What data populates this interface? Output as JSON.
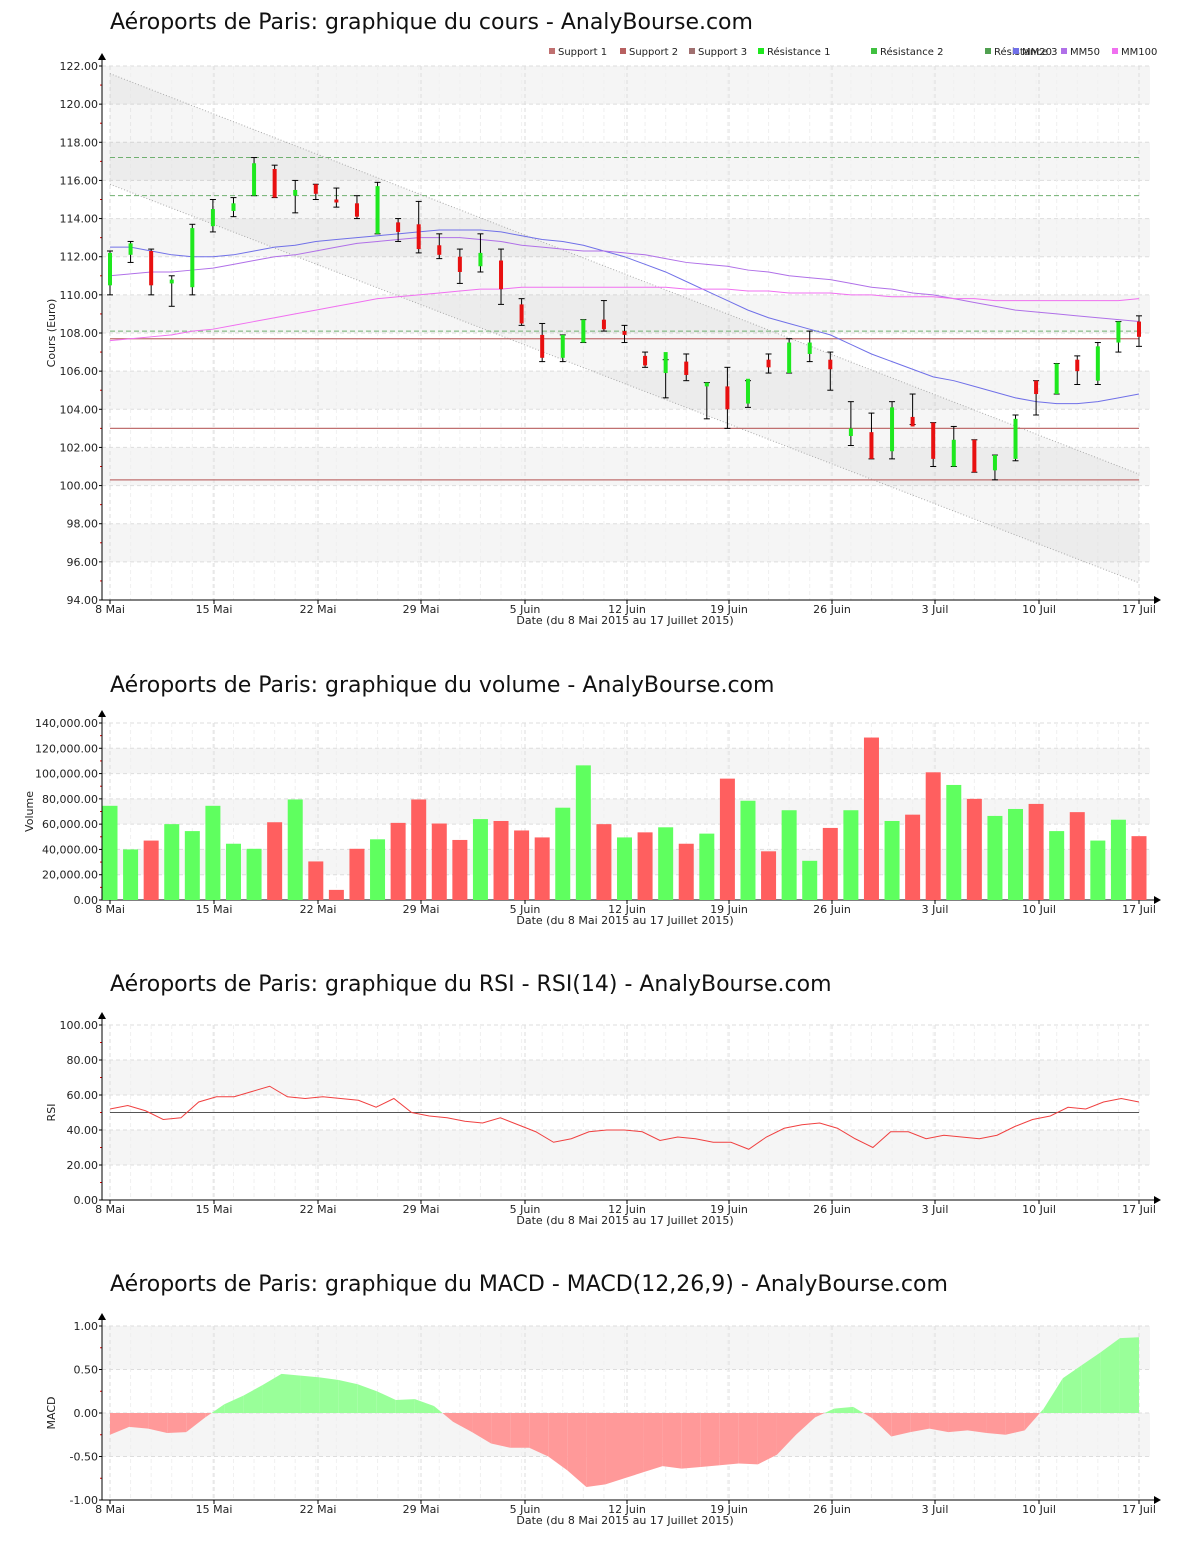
{
  "page": {
    "titles": {
      "price": "Aéroports de Paris: graphique du cours - AnalyBourse.com",
      "volume": "Aéroports de Paris: graphique du volume - AnalyBourse.com",
      "rsi": "Aéroports de Paris: graphique du RSI - RSI(14) - AnalyBourse.com",
      "macd": "Aéroports de Paris: graphique du MACD - MACD(12,26,9) - AnalyBourse.com"
    },
    "xlabel": "Date (du 8 Mai 2015 au 17 Juillet 2015)",
    "colors": {
      "up": "#1ee81e",
      "down": "#e81010",
      "vol_up": "#5fff5f",
      "vol_down": "#ff5f5f",
      "support": "#c07070",
      "resistance": "#70b070",
      "mm20": "#7070e8",
      "mm50": "#b070e8",
      "mm100": "#f070f0",
      "rsi_line": "#f04040",
      "macd_pos": "#99ff99",
      "macd_neg": "#ff9999"
    }
  },
  "chart_data": [
    {
      "type": "candlestick",
      "title": "Aéroports de Paris: graphique du cours - AnalyBourse.com",
      "xlabel": "Date (du 8 Mai 2015 au 17 Juillet 2015)",
      "ylabel": "Cours (Euro)",
      "ylim": [
        94,
        122
      ],
      "yticks": [
        "94.00",
        "96.00",
        "98.00",
        "100.00",
        "102.00",
        "104.00",
        "106.00",
        "108.00",
        "110.00",
        "112.00",
        "114.00",
        "116.00",
        "118.00",
        "120.00",
        "122.00"
      ],
      "xticks": [
        "8 Mai",
        "15 Mai",
        "22 Mai",
        "29 Mai",
        "5 Juin",
        "12 Juin",
        "19 Juin",
        "26 Juin",
        "3 Juil",
        "10 Juil",
        "17 Juil"
      ],
      "grid": true,
      "legend": [
        "Support 1",
        "Support 2",
        "Support 3",
        "Résistance 1",
        "Résistance 2",
        "Résistance 3",
        "MM20",
        "MM50",
        "MM100"
      ],
      "legend_position": "top-right",
      "levels": {
        "support": [
          100.3,
          103.0,
          107.7
        ],
        "resistance": [
          108.1,
          115.2,
          117.2
        ]
      },
      "channel": {
        "upper": [
          121.6,
          100.6
        ],
        "lower": [
          115.8,
          94.9
        ]
      },
      "candles": [
        {
          "o": 110.5,
          "h": 112.3,
          "l": 110.0,
          "c": 112.2
        },
        {
          "o": 112.1,
          "h": 112.8,
          "l": 111.7,
          "c": 112.7
        },
        {
          "o": 112.3,
          "h": 112.4,
          "l": 110.0,
          "c": 110.5
        },
        {
          "o": 110.6,
          "h": 111.0,
          "l": 109.4,
          "c": 110.8
        },
        {
          "o": 110.4,
          "h": 113.7,
          "l": 110.0,
          "c": 113.5
        },
        {
          "o": 113.6,
          "h": 115.0,
          "l": 113.3,
          "c": 114.5
        },
        {
          "o": 114.4,
          "h": 115.1,
          "l": 114.1,
          "c": 114.8
        },
        {
          "o": 115.2,
          "h": 117.2,
          "l": 115.2,
          "c": 116.9
        },
        {
          "o": 116.6,
          "h": 116.8,
          "l": 115.1,
          "c": 115.1
        },
        {
          "o": 115.2,
          "h": 116.0,
          "l": 114.3,
          "c": 115.5
        },
        {
          "o": 115.8,
          "h": 115.8,
          "l": 115.0,
          "c": 115.3
        },
        {
          "o": 115.0,
          "h": 115.6,
          "l": 114.6,
          "c": 114.9
        },
        {
          "o": 114.8,
          "h": 115.2,
          "l": 114.0,
          "c": 114.1
        },
        {
          "o": 113.2,
          "h": 115.9,
          "l": 113.2,
          "c": 115.7
        },
        {
          "o": 113.8,
          "h": 114.0,
          "l": 112.8,
          "c": 113.3
        },
        {
          "o": 113.7,
          "h": 114.9,
          "l": 112.2,
          "c": 112.4
        },
        {
          "o": 112.6,
          "h": 113.2,
          "l": 111.9,
          "c": 112.1
        },
        {
          "o": 112.0,
          "h": 112.4,
          "l": 110.6,
          "c": 111.2
        },
        {
          "o": 111.5,
          "h": 113.2,
          "l": 111.2,
          "c": 112.2
        },
        {
          "o": 111.8,
          "h": 112.4,
          "l": 109.5,
          "c": 110.3
        },
        {
          "o": 109.5,
          "h": 109.8,
          "l": 108.4,
          "c": 108.5
        },
        {
          "o": 107.9,
          "h": 108.5,
          "l": 106.5,
          "c": 106.7
        },
        {
          "o": 106.7,
          "h": 107.9,
          "l": 106.5,
          "c": 107.9
        },
        {
          "o": 107.5,
          "h": 108.7,
          "l": 107.5,
          "c": 108.7
        },
        {
          "o": 108.7,
          "h": 109.7,
          "l": 108.1,
          "c": 108.2
        },
        {
          "o": 108.1,
          "h": 108.4,
          "l": 107.5,
          "c": 107.9
        },
        {
          "o": 106.8,
          "h": 107.0,
          "l": 106.2,
          "c": 106.3
        },
        {
          "o": 105.9,
          "h": 106.6,
          "l": 104.6,
          "c": 107.0
        },
        {
          "o": 106.5,
          "h": 106.9,
          "l": 105.5,
          "c": 105.8
        },
        {
          "o": 105.2,
          "h": 105.4,
          "l": 103.5,
          "c": 105.4
        },
        {
          "o": 105.2,
          "h": 106.2,
          "l": 103.0,
          "c": 104.0
        },
        {
          "o": 104.3,
          "h": 105.5,
          "l": 104.1,
          "c": 105.6
        },
        {
          "o": 106.6,
          "h": 106.9,
          "l": 105.9,
          "c": 106.2
        },
        {
          "o": 105.9,
          "h": 107.7,
          "l": 105.9,
          "c": 107.5
        },
        {
          "o": 106.9,
          "h": 108.1,
          "l": 106.5,
          "c": 107.5
        },
        {
          "o": 106.6,
          "h": 107.0,
          "l": 105.0,
          "c": 106.1
        },
        {
          "o": 102.6,
          "h": 104.4,
          "l": 102.1,
          "c": 103.0
        },
        {
          "o": 102.8,
          "h": 103.8,
          "l": 101.4,
          "c": 101.4
        },
        {
          "o": 101.8,
          "h": 104.4,
          "l": 101.4,
          "c": 104.1
        },
        {
          "o": 103.6,
          "h": 104.8,
          "l": 103.2,
          "c": 103.1
        },
        {
          "o": 103.3,
          "h": 103.3,
          "l": 101.0,
          "c": 101.4
        },
        {
          "o": 101.0,
          "h": 103.1,
          "l": 101.0,
          "c": 102.4
        },
        {
          "o": 102.4,
          "h": 102.4,
          "l": 100.7,
          "c": 100.7
        },
        {
          "o": 100.8,
          "h": 101.6,
          "l": 100.3,
          "c": 101.6
        },
        {
          "o": 101.4,
          "h": 103.7,
          "l": 101.3,
          "c": 103.5
        },
        {
          "o": 105.5,
          "h": 105.5,
          "l": 103.7,
          "c": 104.8
        },
        {
          "o": 104.8,
          "h": 106.4,
          "l": 104.8,
          "c": 106.4
        },
        {
          "o": 106.6,
          "h": 106.8,
          "l": 105.3,
          "c": 106.0
        },
        {
          "o": 105.5,
          "h": 107.5,
          "l": 105.3,
          "c": 107.3
        },
        {
          "o": 107.5,
          "h": 108.6,
          "l": 107.0,
          "c": 108.6
        },
        {
          "o": 108.6,
          "h": 108.9,
          "l": 107.3,
          "c": 107.8
        }
      ],
      "series": [
        {
          "name": "MM20",
          "values": [
            112.5,
            112.5,
            112.3,
            112.1,
            112.0,
            112.0,
            112.1,
            112.3,
            112.5,
            112.6,
            112.8,
            112.9,
            113.0,
            113.1,
            113.2,
            113.3,
            113.4,
            113.4,
            113.4,
            113.3,
            113.1,
            112.9,
            112.8,
            112.6,
            112.3,
            112.0,
            111.6,
            111.2,
            110.7,
            110.2,
            109.7,
            109.2,
            108.8,
            108.5,
            108.2,
            107.9,
            107.4,
            106.9,
            106.5,
            106.1,
            105.7,
            105.5,
            105.2,
            104.9,
            104.6,
            104.4,
            104.3,
            104.3,
            104.4,
            104.6,
            104.8
          ]
        },
        {
          "name": "MM50",
          "values": [
            111.0,
            111.1,
            111.2,
            111.2,
            111.3,
            111.4,
            111.6,
            111.8,
            112.0,
            112.1,
            112.3,
            112.5,
            112.7,
            112.8,
            112.9,
            113.0,
            113.0,
            113.0,
            112.9,
            112.8,
            112.6,
            112.5,
            112.4,
            112.3,
            112.3,
            112.2,
            112.1,
            111.9,
            111.7,
            111.6,
            111.5,
            111.3,
            111.2,
            111.0,
            110.9,
            110.8,
            110.6,
            110.4,
            110.3,
            110.1,
            110.0,
            109.8,
            109.6,
            109.4,
            109.2,
            109.1,
            109.0,
            108.9,
            108.8,
            108.7,
            108.6
          ]
        },
        {
          "name": "MM100",
          "values": [
            107.6,
            107.7,
            107.8,
            107.9,
            108.1,
            108.2,
            108.4,
            108.6,
            108.8,
            109.0,
            109.2,
            109.4,
            109.6,
            109.8,
            109.9,
            110.0,
            110.1,
            110.2,
            110.3,
            110.3,
            110.4,
            110.4,
            110.4,
            110.4,
            110.4,
            110.4,
            110.4,
            110.4,
            110.3,
            110.3,
            110.3,
            110.2,
            110.2,
            110.1,
            110.1,
            110.1,
            110.0,
            110.0,
            109.9,
            109.9,
            109.9,
            109.8,
            109.8,
            109.7,
            109.7,
            109.7,
            109.7,
            109.7,
            109.7,
            109.7,
            109.8
          ]
        }
      ]
    },
    {
      "type": "bar",
      "title": "Aéroports de Paris: graphique du volume - AnalyBourse.com",
      "xlabel": "Date (du 8 Mai 2015 au 17 Juillet 2015)",
      "ylabel": "Volume",
      "ylim": [
        0,
        140000
      ],
      "yticks": [
        "0.00",
        "20,000.00",
        "40,000.00",
        "60,000.00",
        "80,000.00",
        "100,000.00",
        "120,000.00",
        "140,000.00"
      ],
      "xticks": [
        "8 Mai",
        "15 Mai",
        "22 Mai",
        "29 Mai",
        "5 Juin",
        "12 Juin",
        "19 Juin",
        "26 Juin",
        "3 Juil",
        "10 Juil",
        "17 Juil"
      ],
      "grid": true,
      "values": [
        74500,
        40000,
        47000,
        60000,
        54500,
        74500,
        44500,
        40500,
        61500,
        79500,
        30500,
        8000,
        40500,
        48000,
        61000,
        79500,
        60500,
        47500,
        64000,
        62500,
        55000,
        49500,
        73000,
        106500,
        60000,
        49500,
        53500,
        57500,
        44500,
        52500,
        96000,
        78500,
        38500,
        71000,
        31000,
        57000,
        71000,
        128500,
        62500,
        67500,
        101000,
        91000,
        80000,
        66500,
        72000,
        76000,
        54500,
        69500,
        47000,
        63500,
        50500
      ],
      "directions": [
        "up",
        "up",
        "down",
        "up",
        "up",
        "up",
        "up",
        "up",
        "down",
        "up",
        "down",
        "down",
        "down",
        "up",
        "down",
        "down",
        "down",
        "down",
        "up",
        "down",
        "down",
        "down",
        "up",
        "up",
        "down",
        "up",
        "down",
        "up",
        "down",
        "up",
        "down",
        "up",
        "down",
        "up",
        "up",
        "down",
        "up",
        "down",
        "up",
        "down",
        "down",
        "up",
        "down",
        "up",
        "up",
        "down",
        "up",
        "down",
        "up",
        "up",
        "down"
      ]
    },
    {
      "type": "line",
      "title": "Aéroports de Paris: graphique du RSI - RSI(14) - AnalyBourse.com",
      "xlabel": "Date (du 8 Mai 2015 au 17 Juillet 2015)",
      "ylabel": "RSI",
      "ylim": [
        0,
        100
      ],
      "yticks": [
        "0.00",
        "20.00",
        "40.00",
        "60.00",
        "80.00",
        "100.00"
      ],
      "xticks": [
        "8 Mai",
        "15 Mai",
        "22 Mai",
        "29 Mai",
        "5 Juin",
        "12 Juin",
        "19 Juin",
        "26 Juin",
        "3 Juil",
        "10 Juil",
        "17 Juil"
      ],
      "grid": true,
      "reference_line": 50,
      "series": [
        {
          "name": "RSI(14)",
          "values": [
            52,
            54,
            51,
            46,
            47,
            56,
            59,
            59,
            62,
            65,
            59,
            58,
            59,
            58,
            57,
            53,
            58,
            50,
            48,
            47,
            45,
            44,
            47,
            43,
            39,
            33,
            35,
            39,
            40,
            40,
            39,
            34,
            36,
            35,
            33,
            33,
            29,
            36,
            41,
            43,
            44,
            41,
            35,
            30,
            39,
            39,
            35,
            37,
            36,
            35,
            37,
            42,
            46,
            48,
            53,
            52,
            56,
            58,
            56
          ]
        }
      ]
    },
    {
      "type": "area",
      "title": "Aéroports de Paris: graphique du MACD - MACD(12,26,9) - AnalyBourse.com",
      "xlabel": "Date (du 8 Mai 2015 au 17 Juillet 2015)",
      "ylabel": "MACD",
      "ylim": [
        -1,
        1
      ],
      "yticks": [
        "-1.00",
        "-0.50",
        "0.00",
        "0.50",
        "1.00"
      ],
      "xticks": [
        "8 Mai",
        "15 Mai",
        "22 Mai",
        "29 Mai",
        "5 Juin",
        "12 Juin",
        "19 Juin",
        "26 Juin",
        "3 Juil",
        "10 Juil",
        "17 Juil"
      ],
      "grid": true,
      "series": [
        {
          "name": "MACD",
          "values": [
            -0.25,
            -0.16,
            -0.18,
            -0.23,
            -0.22,
            -0.05,
            0.1,
            0.2,
            0.32,
            0.45,
            0.43,
            0.41,
            0.38,
            0.33,
            0.25,
            0.15,
            0.16,
            0.08,
            -0.1,
            -0.22,
            -0.35,
            -0.4,
            -0.4,
            -0.5,
            -0.66,
            -0.85,
            -0.82,
            -0.75,
            -0.68,
            -0.61,
            -0.64,
            -0.62,
            -0.6,
            -0.58,
            -0.59,
            -0.48,
            -0.25,
            -0.05,
            0.05,
            0.07,
            -0.06,
            -0.27,
            -0.22,
            -0.18,
            -0.22,
            -0.2,
            -0.23,
            -0.25,
            -0.2,
            0.05,
            0.4,
            0.55,
            0.7,
            0.86,
            0.87
          ]
        }
      ]
    }
  ]
}
